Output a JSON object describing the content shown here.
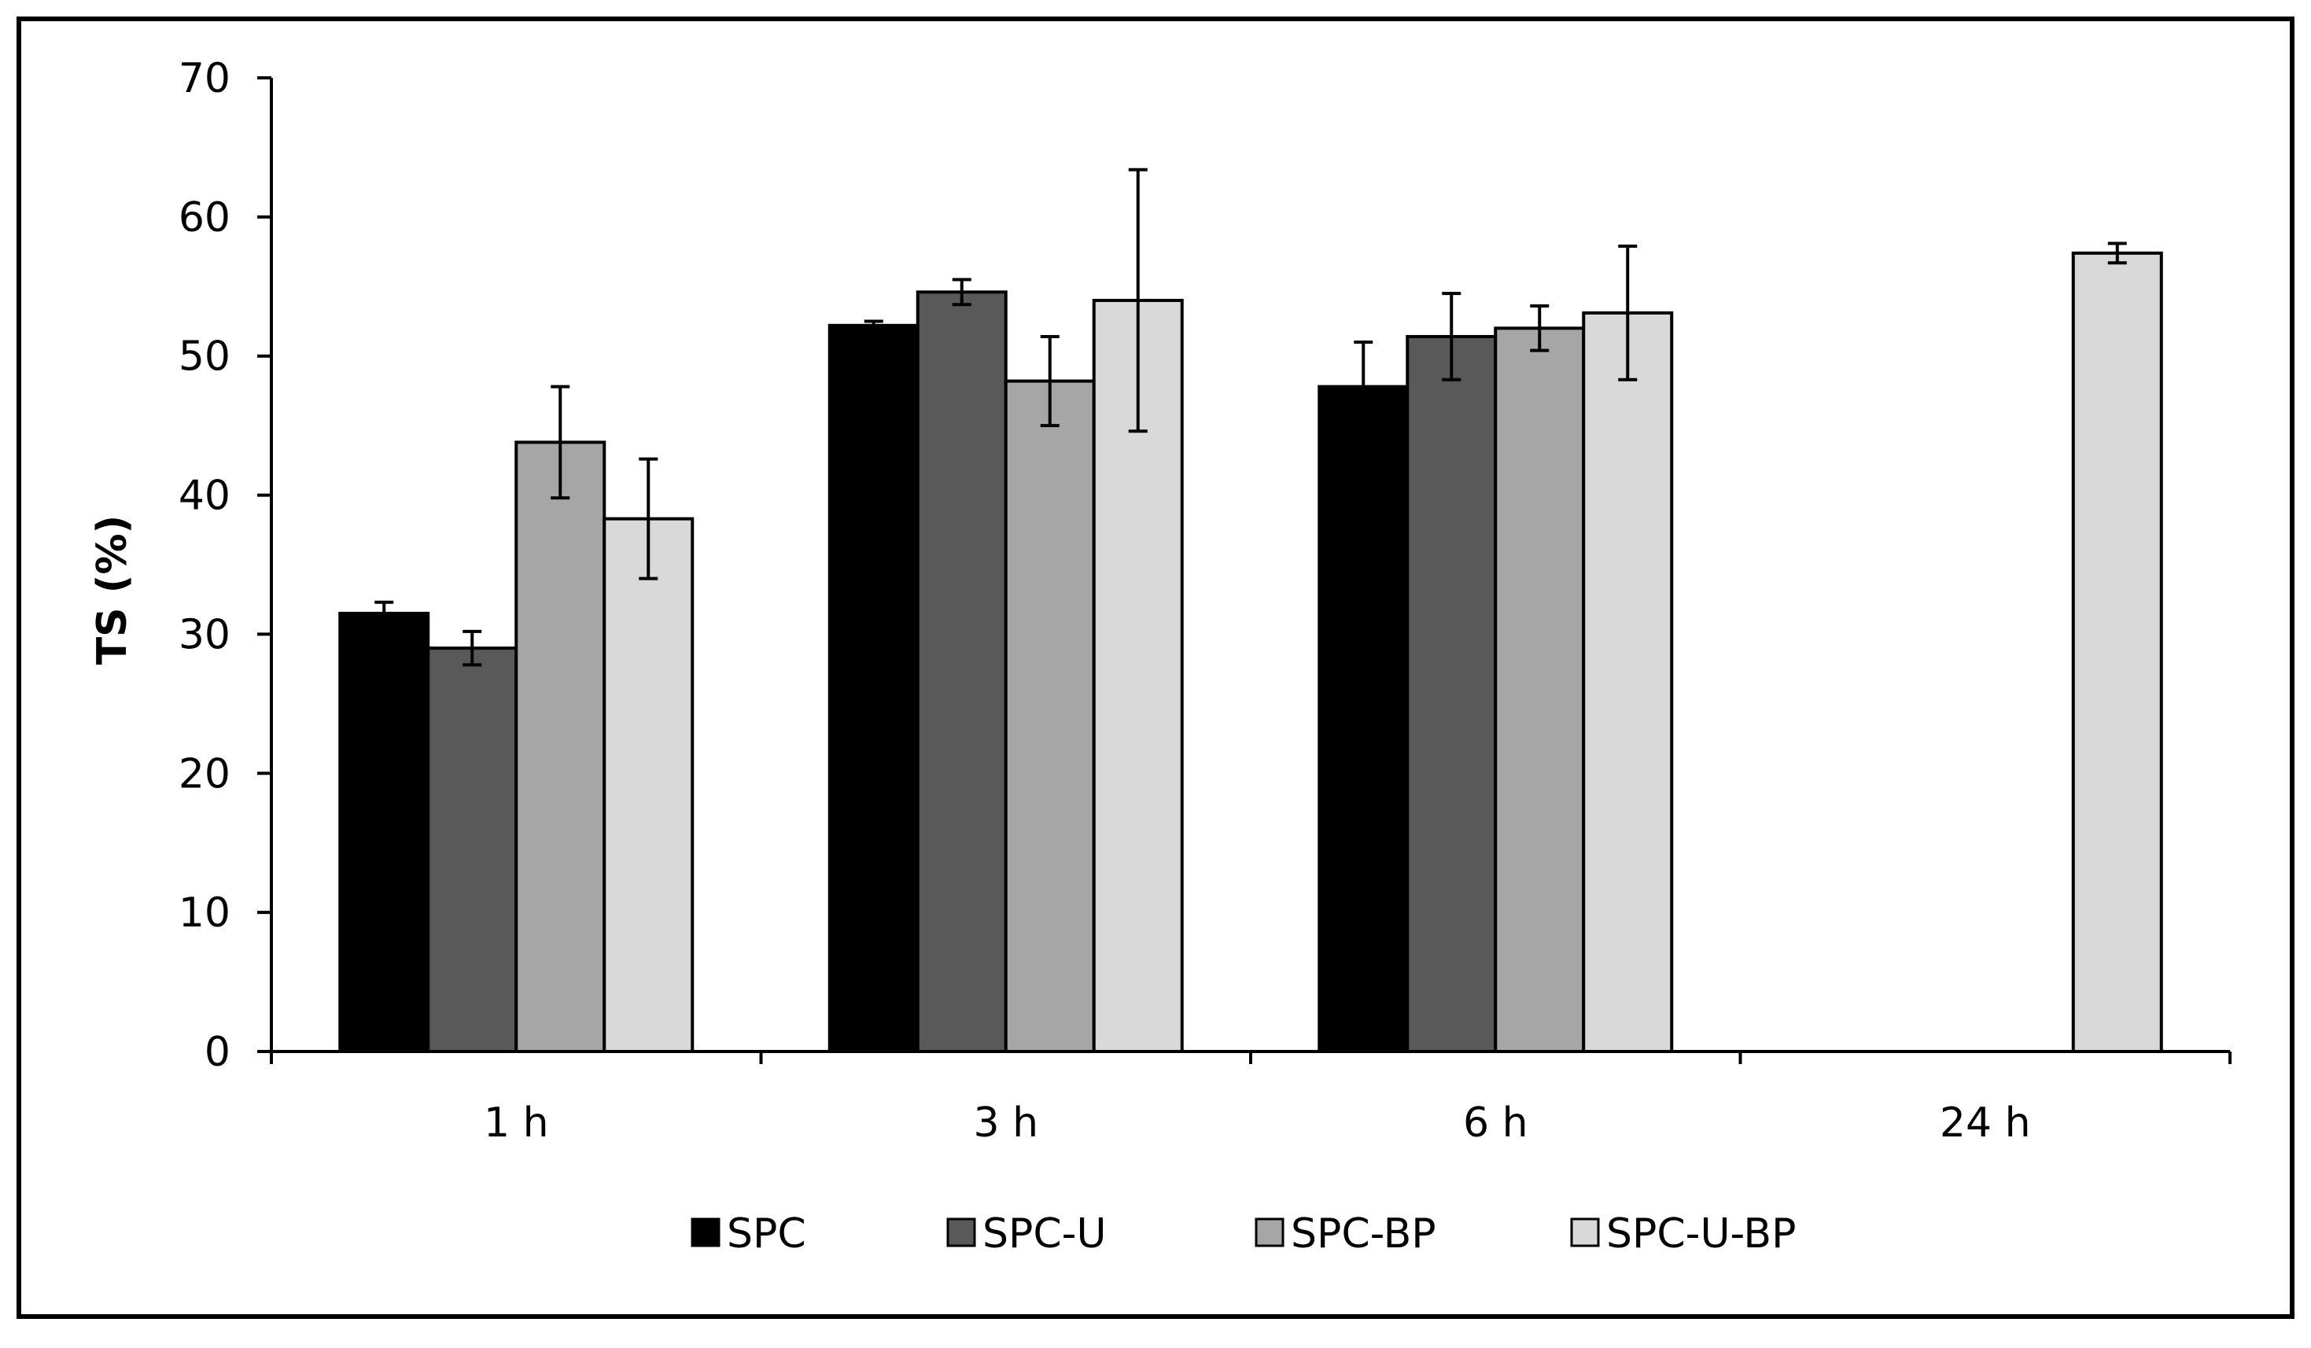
{
  "chart_data": {
    "type": "bar",
    "title": "",
    "xlabel": "",
    "ylabel": "TS (%)",
    "ylim": [
      0,
      70
    ],
    "yticks": [
      "0",
      "10",
      "20",
      "30",
      "40",
      "50",
      "60",
      "70"
    ],
    "categories": [
      "1 h",
      "3 h",
      "6 h",
      "24 h"
    ],
    "grid": false,
    "legend_position": "bottom",
    "series": [
      {
        "name": "SPC",
        "color": "#000000",
        "values": [
          31.5,
          52.2,
          47.8,
          null
        ],
        "errors": [
          0.8,
          0.3,
          3.2,
          null
        ]
      },
      {
        "name": "SPC-U",
        "color": "#595959",
        "values": [
          29.0,
          54.6,
          51.4,
          null
        ],
        "errors": [
          1.2,
          0.9,
          3.1,
          null
        ]
      },
      {
        "name": "SPC-BP",
        "color": "#a6a6a6",
        "values": [
          43.8,
          48.2,
          52.0,
          null
        ],
        "errors": [
          4.0,
          3.2,
          1.6,
          null
        ]
      },
      {
        "name": "SPC-U-BP",
        "color": "#d9d9d9",
        "values": [
          38.3,
          54.0,
          53.1,
          57.4
        ],
        "errors": [
          4.3,
          9.4,
          4.8,
          0.7
        ]
      }
    ]
  }
}
